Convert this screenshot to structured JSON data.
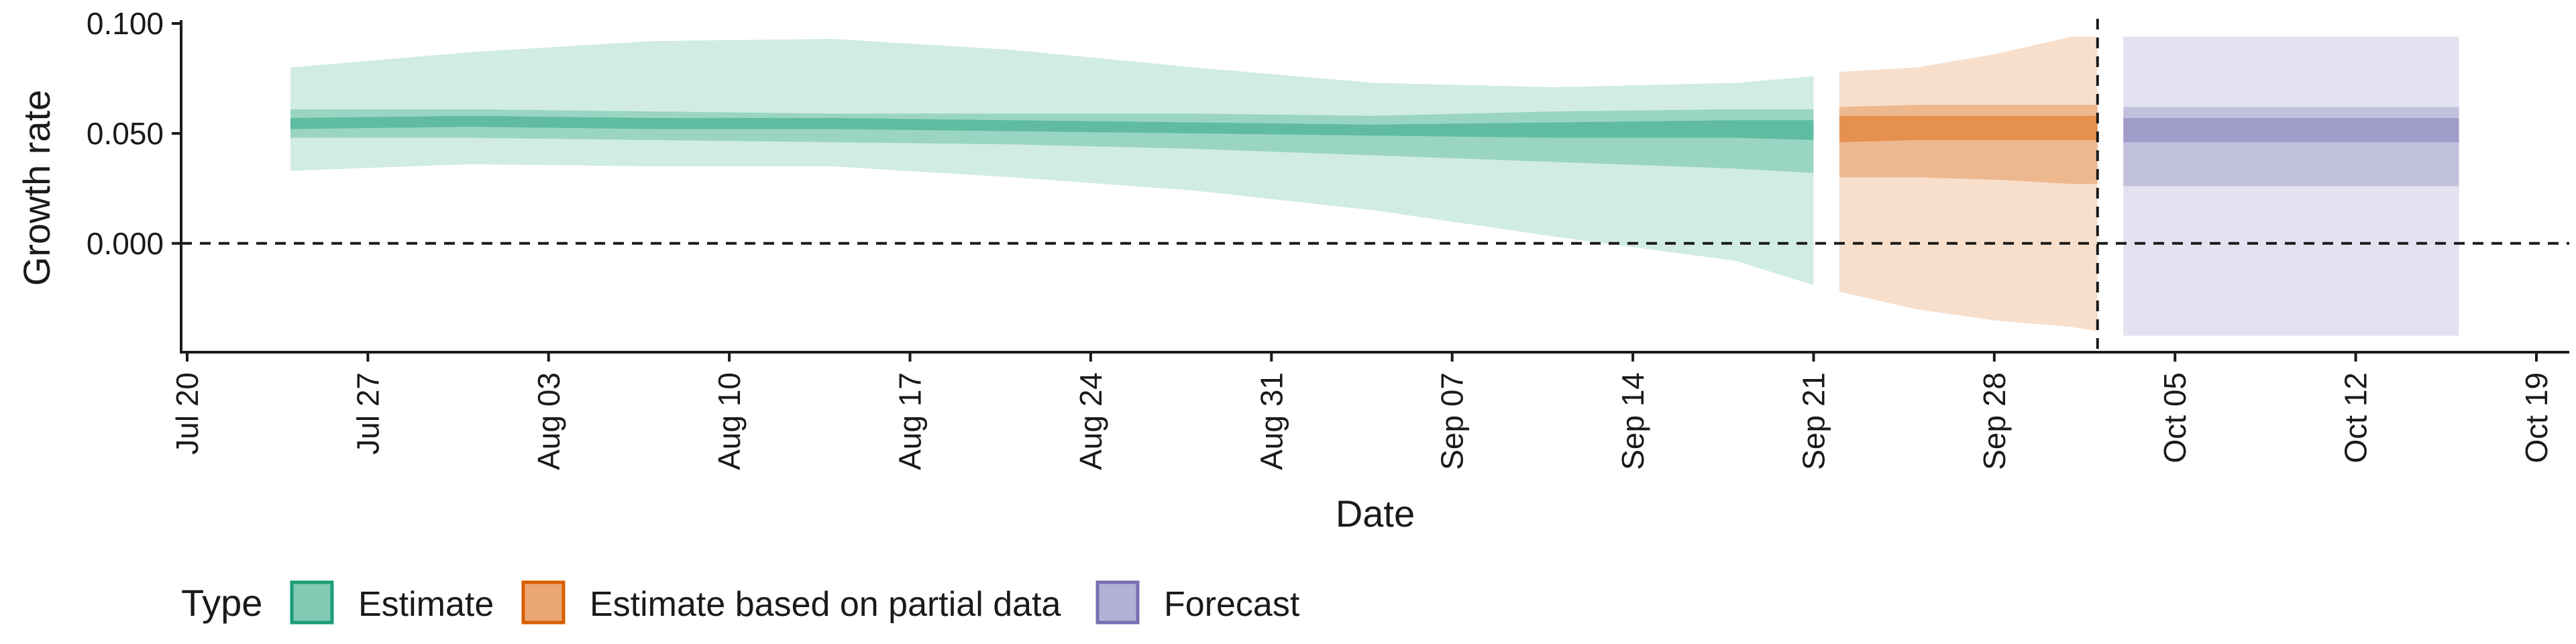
{
  "chart_data": {
    "type": "area",
    "xlabel": "Date",
    "ylabel": "Growth rate",
    "ylim": [
      -0.0495,
      0.1
    ],
    "xlim": [
      "2020-07-20",
      "2020-10-19"
    ],
    "x_ticks": [
      "Jul 20",
      "Jul 27",
      "Aug 03",
      "Aug 10",
      "Aug 17",
      "Aug 24",
      "Aug 31",
      "Sep 07",
      "Sep 14",
      "Sep 21",
      "Sep 28",
      "Oct 05",
      "Oct 12",
      "Oct 19"
    ],
    "y_ticks": [
      0.0,
      0.05,
      0.1
    ],
    "y_tick_labels": [
      "0.000",
      "0.050",
      "0.100"
    ],
    "hline_y": 0,
    "vline_date": "2020-10-02",
    "legend": {
      "title": "Type",
      "placement": "bottom-left",
      "items": [
        {
          "label": "Estimate",
          "color": "#1b9e77"
        },
        {
          "label": "Estimate based on partial data",
          "color": "#d95f02"
        },
        {
          "label": "Forecast",
          "color": "#7570b3"
        }
      ]
    },
    "series": [
      {
        "name": "Estimate",
        "color": "#1b9e77",
        "x": [
          "2020-07-24",
          "2020-07-31",
          "2020-08-07",
          "2020-08-14",
          "2020-08-21",
          "2020-08-28",
          "2020-09-04",
          "2020-09-11",
          "2020-09-18",
          "2020-09-21"
        ],
        "median": [
          0.054,
          0.055,
          0.054,
          0.054,
          0.053,
          0.052,
          0.051,
          0.051,
          0.052,
          0.051
        ],
        "inner_lower": [
          0.052,
          0.053,
          0.052,
          0.052,
          0.051,
          0.05,
          0.049,
          0.048,
          0.048,
          0.047
        ],
        "inner_upper": [
          0.057,
          0.058,
          0.057,
          0.057,
          0.056,
          0.055,
          0.054,
          0.055,
          0.056,
          0.056
        ],
        "mid_lower": [
          0.048,
          0.048,
          0.047,
          0.046,
          0.045,
          0.043,
          0.04,
          0.037,
          0.034,
          0.032
        ],
        "mid_upper": [
          0.061,
          0.061,
          0.06,
          0.059,
          0.059,
          0.059,
          0.058,
          0.06,
          0.061,
          0.061
        ],
        "outer_lower": [
          0.033,
          0.036,
          0.035,
          0.035,
          0.03,
          0.024,
          0.015,
          0.003,
          -0.008,
          -0.019
        ],
        "outer_upper": [
          0.08,
          0.087,
          0.092,
          0.093,
          0.088,
          0.08,
          0.073,
          0.071,
          0.073,
          0.076
        ]
      },
      {
        "name": "Estimate based on partial data",
        "color": "#d95f02",
        "x": [
          "2020-09-22",
          "2020-09-25",
          "2020-09-28",
          "2020-10-01",
          "2020-10-02"
        ],
        "median": [
          0.051,
          0.051,
          0.052,
          0.052,
          0.052
        ],
        "inner_lower": [
          0.046,
          0.047,
          0.047,
          0.047,
          0.047
        ],
        "inner_upper": [
          0.058,
          0.058,
          0.058,
          0.058,
          0.058
        ],
        "mid_lower": [
          0.03,
          0.03,
          0.029,
          0.027,
          0.027
        ],
        "mid_upper": [
          0.062,
          0.063,
          0.063,
          0.063,
          0.063
        ],
        "outer_lower": [
          -0.022,
          -0.03,
          -0.035,
          -0.038,
          -0.04
        ],
        "outer_upper": [
          0.078,
          0.08,
          0.086,
          0.094,
          0.094
        ]
      },
      {
        "name": "Forecast",
        "color": "#7570b3",
        "x": [
          "2020-10-03",
          "2020-10-16"
        ],
        "median": [
          0.052,
          0.052
        ],
        "inner_lower": [
          0.046,
          0.046
        ],
        "inner_upper": [
          0.057,
          0.057
        ],
        "mid_lower": [
          0.026,
          0.026
        ],
        "mid_upper": [
          0.062,
          0.062
        ],
        "outer_lower": [
          -0.042,
          -0.042
        ],
        "outer_upper": [
          0.094,
          0.094
        ]
      }
    ]
  }
}
